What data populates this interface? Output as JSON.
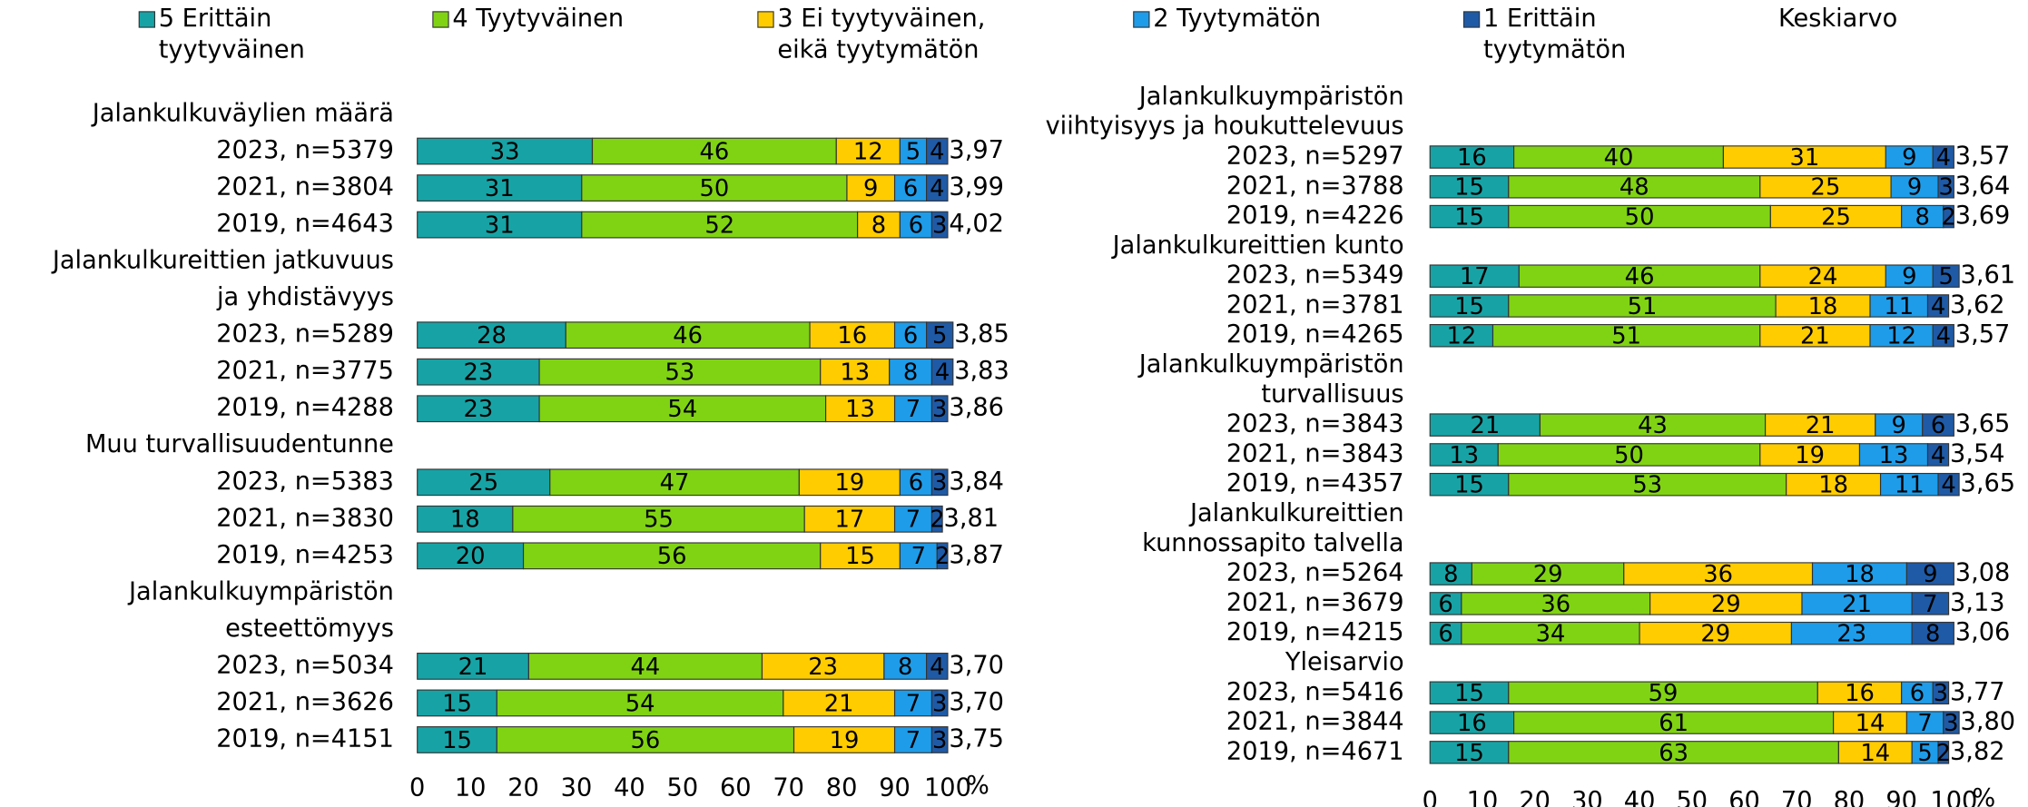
{
  "chart_data": {
    "type": "bar",
    "orientation": "horizontal",
    "stacked": true,
    "xlim": [
      0,
      100
    ],
    "xticks": [
      0,
      10,
      20,
      30,
      40,
      50,
      60,
      70,
      80,
      90,
      100
    ],
    "x_unit": "%",
    "mean_name": "Keskiarvo",
    "series": [
      {
        "name": [
          "5 Erittäin",
          "tyytyväinen"
        ],
        "color": "#17a3a5"
      },
      {
        "name": [
          "4 Tyytyväinen"
        ],
        "color": "#80d313"
      },
      {
        "name": [
          "3 Ei tyytyväinen,",
          "eikä tyytymätön"
        ],
        "color": "#ffcc00"
      },
      {
        "name": [
          "2 Tyytymätön"
        ],
        "color": "#1e9ce9"
      },
      {
        "name": [
          "1 Erittäin",
          "tyytymätön"
        ],
        "color": "#1f5aa6"
      }
    ],
    "panels": [
      {
        "groups": [
          {
            "label": [
              "Jalankulkuväylien määrä"
            ],
            "rows": [
              {
                "label": "2023, n=5379",
                "values": [
                  33,
                  46,
                  12,
                  5,
                  4
                ],
                "mean": 3.97,
                "mean_label": "3,97"
              },
              {
                "label": "2021, n=3804",
                "values": [
                  31,
                  50,
                  9,
                  6,
                  4
                ],
                "mean": 3.99,
                "mean_label": "3,99"
              },
              {
                "label": "2019, n=4643",
                "values": [
                  31,
                  52,
                  8,
                  6,
                  3
                ],
                "mean": 4.02,
                "mean_label": "4,02"
              }
            ]
          },
          {
            "label": [
              "Jalankulkureittien jatkuvuus",
              "ja yhdistävyys"
            ],
            "rows": [
              {
                "label": "2023, n=5289",
                "values": [
                  28,
                  46,
                  16,
                  6,
                  5
                ],
                "mean": 3.85,
                "mean_label": "3,85"
              },
              {
                "label": "2021, n=3775",
                "values": [
                  23,
                  53,
                  13,
                  8,
                  4
                ],
                "mean": 3.83,
                "mean_label": "3,83"
              },
              {
                "label": "2019, n=4288",
                "values": [
                  23,
                  54,
                  13,
                  7,
                  3
                ],
                "mean": 3.86,
                "mean_label": "3,86"
              }
            ]
          },
          {
            "label": [
              "Muu turvallisuudentunne"
            ],
            "rows": [
              {
                "label": "2023, n=5383",
                "values": [
                  25,
                  47,
                  19,
                  6,
                  3
                ],
                "mean": 3.84,
                "mean_label": "3,84"
              },
              {
                "label": "2021, n=3830",
                "values": [
                  18,
                  55,
                  17,
                  7,
                  2
                ],
                "mean": 3.81,
                "mean_label": "3,81"
              },
              {
                "label": "2019, n=4253",
                "values": [
                  20,
                  56,
                  15,
                  7,
                  2
                ],
                "mean": 3.87,
                "mean_label": "3,87"
              }
            ]
          },
          {
            "label": [
              "Jalankulkuympäristön",
              "esteettömyys"
            ],
            "rows": [
              {
                "label": "2023, n=5034",
                "values": [
                  21,
                  44,
                  23,
                  8,
                  4
                ],
                "mean": 3.7,
                "mean_label": "3,70"
              },
              {
                "label": "2021, n=3626",
                "values": [
                  15,
                  54,
                  21,
                  7,
                  3
                ],
                "mean": 3.7,
                "mean_label": "3,70"
              },
              {
                "label": "2019, n=4151",
                "values": [
                  15,
                  56,
                  19,
                  7,
                  3
                ],
                "mean": 3.75,
                "mean_label": "3,75"
              }
            ]
          }
        ]
      },
      {
        "groups": [
          {
            "label": [
              "Jalankulkuympäristön",
              "viihtyisyys ja houkuttelevuus"
            ],
            "rows": [
              {
                "label": "2023, n=5297",
                "values": [
                  16,
                  40,
                  31,
                  9,
                  4
                ],
                "mean": 3.57,
                "mean_label": "3,57"
              },
              {
                "label": "2021, n=3788",
                "values": [
                  15,
                  48,
                  25,
                  9,
                  3
                ],
                "mean": 3.64,
                "mean_label": "3,64"
              },
              {
                "label": "2019, n=4226",
                "values": [
                  15,
                  50,
                  25,
                  8,
                  2
                ],
                "mean": 3.69,
                "mean_label": "3,69"
              }
            ]
          },
          {
            "label": [
              "Jalankulkureittien kunto"
            ],
            "rows": [
              {
                "label": "2023, n=5349",
                "values": [
                  17,
                  46,
                  24,
                  9,
                  5
                ],
                "mean": 3.61,
                "mean_label": "3,61"
              },
              {
                "label": "2021, n=3781",
                "values": [
                  15,
                  51,
                  18,
                  11,
                  4
                ],
                "mean": 3.62,
                "mean_label": "3,62"
              },
              {
                "label": "2019, n=4265",
                "values": [
                  12,
                  51,
                  21,
                  12,
                  4
                ],
                "mean": 3.57,
                "mean_label": "3,57"
              }
            ]
          },
          {
            "label": [
              "Jalankulkuympäristön",
              "turvallisuus"
            ],
            "rows": [
              {
                "label": "2023, n=3843",
                "values": [
                  21,
                  43,
                  21,
                  9,
                  6
                ],
                "mean": 3.65,
                "mean_label": "3,65"
              },
              {
                "label": "2021, n=3843",
                "values": [
                  13,
                  50,
                  19,
                  13,
                  4
                ],
                "mean": 3.54,
                "mean_label": "3,54"
              },
              {
                "label": "2019, n=4357",
                "values": [
                  15,
                  53,
                  18,
                  11,
                  4
                ],
                "mean": 3.65,
                "mean_label": "3,65"
              }
            ]
          },
          {
            "label": [
              "Jalankulkureittien",
              "kunnossapito talvella"
            ],
            "rows": [
              {
                "label": "2023, n=5264",
                "values": [
                  8,
                  29,
                  36,
                  18,
                  9
                ],
                "mean": 3.08,
                "mean_label": "3,08"
              },
              {
                "label": "2021, n=3679",
                "values": [
                  6,
                  36,
                  29,
                  21,
                  7
                ],
                "mean": 3.13,
                "mean_label": "3,13"
              },
              {
                "label": "2019, n=4215",
                "values": [
                  6,
                  34,
                  29,
                  23,
                  8
                ],
                "mean": 3.06,
                "mean_label": "3,06"
              }
            ]
          },
          {
            "label": [
              "Yleisarvio"
            ],
            "rows": [
              {
                "label": "2023, n=5416",
                "values": [
                  15,
                  59,
                  16,
                  6,
                  3
                ],
                "mean": 3.77,
                "mean_label": "3,77"
              },
              {
                "label": "2021, n=3844",
                "values": [
                  16,
                  61,
                  14,
                  7,
                  3
                ],
                "mean": 3.8,
                "mean_label": "3,80"
              },
              {
                "label": "2019, n=4671",
                "values": [
                  15,
                  63,
                  14,
                  5,
                  2
                ],
                "mean": 3.82,
                "mean_label": "3,82"
              }
            ]
          }
        ]
      }
    ]
  }
}
